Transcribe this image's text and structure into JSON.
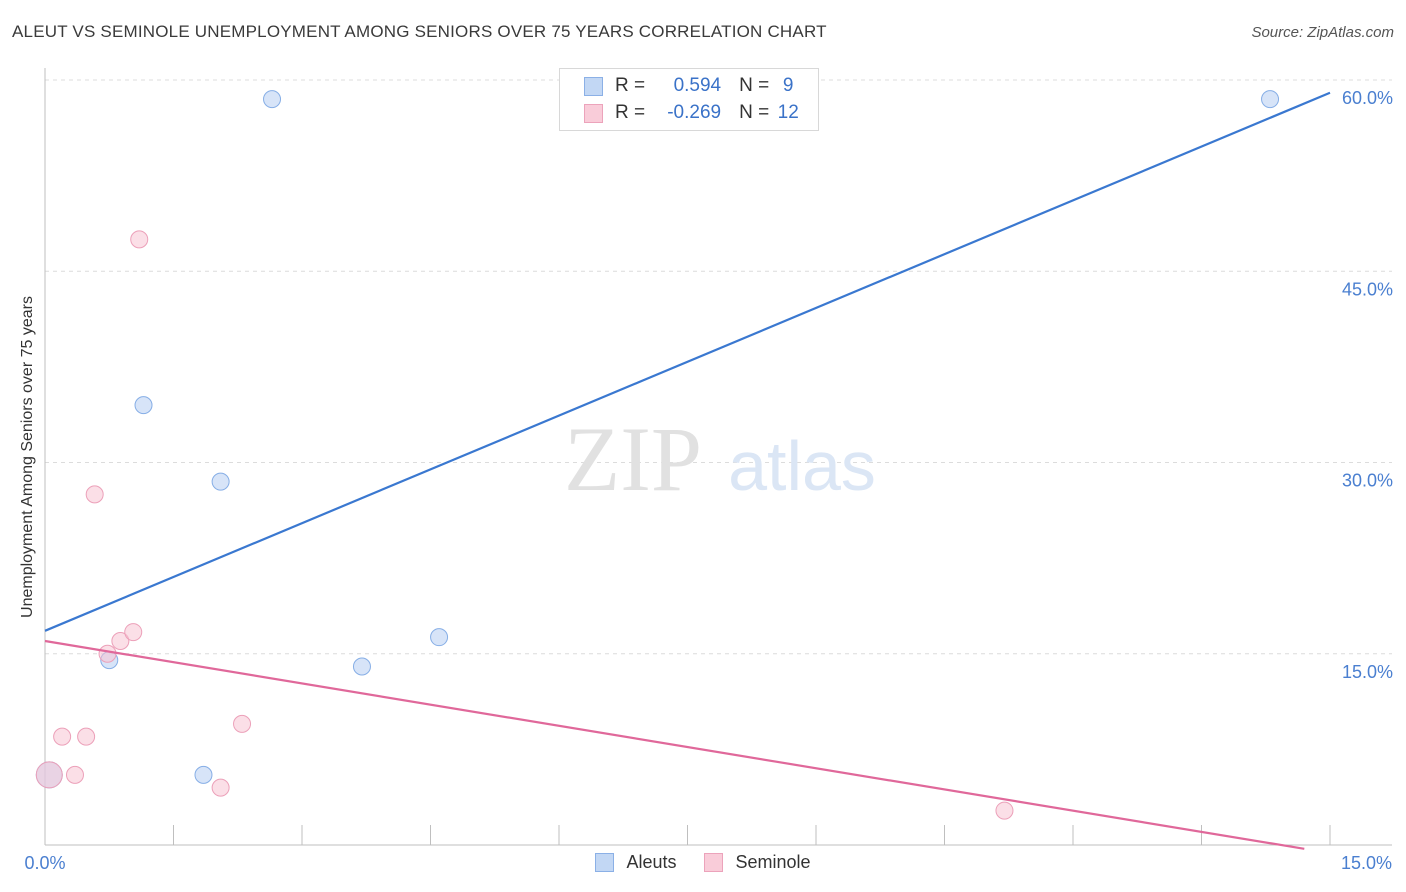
{
  "title": "ALEUT VS SEMINOLE UNEMPLOYMENT AMONG SENIORS OVER 75 YEARS CORRELATION CHART",
  "source": "Source: ZipAtlas.com",
  "watermark": {
    "zip": "ZIP",
    "atlas": "atlas"
  },
  "legend": {
    "r_label": "R =",
    "n_label": "N =",
    "rows": [
      {
        "r": "0.594",
        "n": "9"
      },
      {
        "r": "-0.269",
        "n": "12"
      }
    ]
  },
  "chart_data": {
    "type": "scatter",
    "title": "ALEUT VS SEMINOLE UNEMPLOYMENT AMONG SENIORS OVER 75 YEARS CORRELATION CHART",
    "xlabel": "",
    "ylabel": "Unemployment Among Seniors over 75 years",
    "xlim": [
      0,
      15
    ],
    "ylim": [
      0,
      60
    ],
    "x_tick_labels": [
      "0.0%",
      "15.0%"
    ],
    "y_ticks": [
      15,
      30,
      45,
      60
    ],
    "y_tick_labels": [
      "15.0%",
      "30.0%",
      "45.0%",
      "60.0%"
    ],
    "grid": true,
    "colors": {
      "Aleuts": "#5b8fd8",
      "Seminole": "#e87ea0",
      "aleut_line": "#3a78d0",
      "seminole_line": "#e0689a"
    },
    "series": [
      {
        "name": "Aleuts",
        "points": [
          {
            "x": 0.05,
            "y": 5.5
          },
          {
            "x": 0.75,
            "y": 14.5
          },
          {
            "x": 1.15,
            "y": 34.5
          },
          {
            "x": 1.85,
            "y": 5.5
          },
          {
            "x": 2.05,
            "y": 28.5
          },
          {
            "x": 2.65,
            "y": 58.5
          },
          {
            "x": 3.7,
            "y": 14.0
          },
          {
            "x": 4.6,
            "y": 16.3
          },
          {
            "x": 14.3,
            "y": 58.5
          }
        ],
        "trend": {
          "x": [
            0,
            15
          ],
          "y": [
            16.8,
            59.0
          ]
        }
      },
      {
        "name": "Seminole",
        "points": [
          {
            "x": 0.05,
            "y": 5.5
          },
          {
            "x": 0.2,
            "y": 8.5
          },
          {
            "x": 0.35,
            "y": 5.5
          },
          {
            "x": 0.48,
            "y": 8.5
          },
          {
            "x": 0.58,
            "y": 27.5
          },
          {
            "x": 0.73,
            "y": 15.0
          },
          {
            "x": 0.88,
            "y": 16.0
          },
          {
            "x": 1.03,
            "y": 16.7
          },
          {
            "x": 1.1,
            "y": 47.5
          },
          {
            "x": 2.05,
            "y": 4.5
          },
          {
            "x": 2.3,
            "y": 9.5
          },
          {
            "x": 11.2,
            "y": 2.7
          }
        ],
        "trend": {
          "x": [
            0,
            14.7
          ],
          "y": [
            16.0,
            -0.3
          ]
        }
      }
    ]
  }
}
